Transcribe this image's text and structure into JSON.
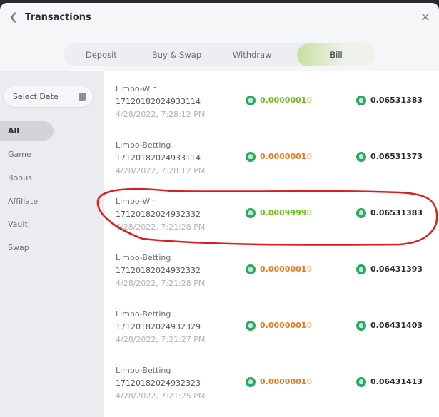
{
  "header": {
    "title": "Transactions",
    "back_icon": "chevron-left-icon",
    "close_icon": "close-icon"
  },
  "tabs": [
    {
      "label": "Deposit"
    },
    {
      "label": "Buy & Swap"
    },
    {
      "label": "Withdraw"
    },
    {
      "label": "Bill",
      "active": true
    }
  ],
  "sidebar": {
    "date_placeholder": "Select Date",
    "items": [
      {
        "label": "All",
        "active": true
      },
      {
        "label": "Game"
      },
      {
        "label": "Bonus"
      },
      {
        "label": "Affiliate"
      },
      {
        "label": "Vault"
      },
      {
        "label": "Swap"
      }
    ]
  },
  "colors": {
    "win": "#6fbf1e",
    "bet": "#ee7a1f",
    "coin": "#2aa866",
    "annotation": "#dd1c1c"
  },
  "transactions": [
    {
      "type": "Limbo-Win",
      "id": "17120182024933114",
      "time": "4/28/2022, 7:28:12 PM",
      "kind": "win",
      "amount_main": "0.0000001",
      "amount_tail": "0",
      "balance": "0.06531383"
    },
    {
      "type": "Limbo-Betting",
      "id": "17120182024933114",
      "time": "4/28/2022, 7:28:12 PM",
      "kind": "bet",
      "amount_main": "0.0000001",
      "amount_tail": "0",
      "balance": "0.06531373"
    },
    {
      "type": "Limbo-Win",
      "id": "17120182024932332",
      "time": "4/28/2022, 7:21:28 PM",
      "kind": "win",
      "amount_main": "0.0009999",
      "amount_tail": "0",
      "balance": "0.06531383",
      "highlighted": true
    },
    {
      "type": "Limbo-Betting",
      "id": "17120182024932332",
      "time": "4/28/2022, 7:21:28 PM",
      "kind": "bet",
      "amount_main": "0.0000001",
      "amount_tail": "0",
      "balance": "0.06431393"
    },
    {
      "type": "Limbo-Betting",
      "id": "17120182024932329",
      "time": "4/28/2022, 7:21:27 PM",
      "kind": "bet",
      "amount_main": "0.0000001",
      "amount_tail": "0",
      "balance": "0.06431403"
    },
    {
      "type": "Limbo-Betting",
      "id": "17120182024932323",
      "time": "4/28/2022, 7:21:25 PM",
      "kind": "bet",
      "amount_main": "0.0000001",
      "amount_tail": "0",
      "balance": "0.06431413"
    }
  ]
}
